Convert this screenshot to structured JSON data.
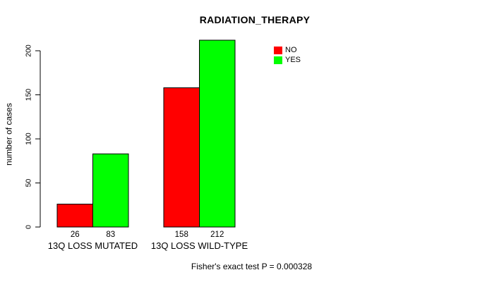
{
  "chart_data": {
    "type": "bar",
    "title": "RADIATION_THERAPY",
    "ylabel": "number of cases",
    "xlabel": "",
    "categories": [
      "13Q LOSS MUTATED",
      "13Q LOSS WILD-TYPE"
    ],
    "series": [
      {
        "name": "NO",
        "color": "#ff0000",
        "values": [
          26,
          158
        ]
      },
      {
        "name": "YES",
        "color": "#00ff00",
        "values": [
          83,
          212
        ]
      }
    ],
    "yticks": [
      0,
      50,
      100,
      150,
      200
    ],
    "ylim": [
      0,
      212
    ],
    "grid": false,
    "bar_outline_color": "#000000",
    "value_labels_shown": true,
    "legend_position": "top-right",
    "footnote": "Fisher's exact test P = 0.000328"
  }
}
